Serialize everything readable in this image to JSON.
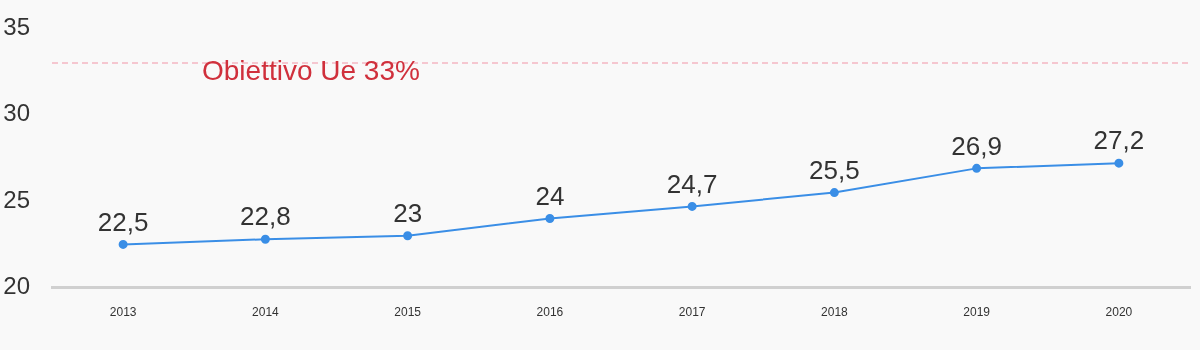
{
  "chart_data": {
    "type": "line",
    "categories": [
      "2013",
      "2014",
      "2015",
      "2016",
      "2017",
      "2018",
      "2019",
      "2020"
    ],
    "series": [
      {
        "color": "#3a8ee6",
        "values": [
          22.5,
          22.8,
          23,
          24,
          24.7,
          25.5,
          26.9,
          27.2
        ],
        "value_labels": [
          "22,5",
          "22,8",
          "23",
          "24",
          "24,7",
          "25,5",
          "26,9",
          "27,2"
        ]
      }
    ],
    "ylim": [
      20,
      35
    ],
    "yticks": [
      20,
      25,
      30,
      35
    ],
    "grid": false,
    "legend": false,
    "marker": "circle",
    "line_style": "solid",
    "ref_lines": [
      {
        "axis": "y",
        "value": 33,
        "label": "Obiettivo Ue 33%",
        "color": "#f4b6c2",
        "line_style": "dashed"
      }
    ]
  }
}
